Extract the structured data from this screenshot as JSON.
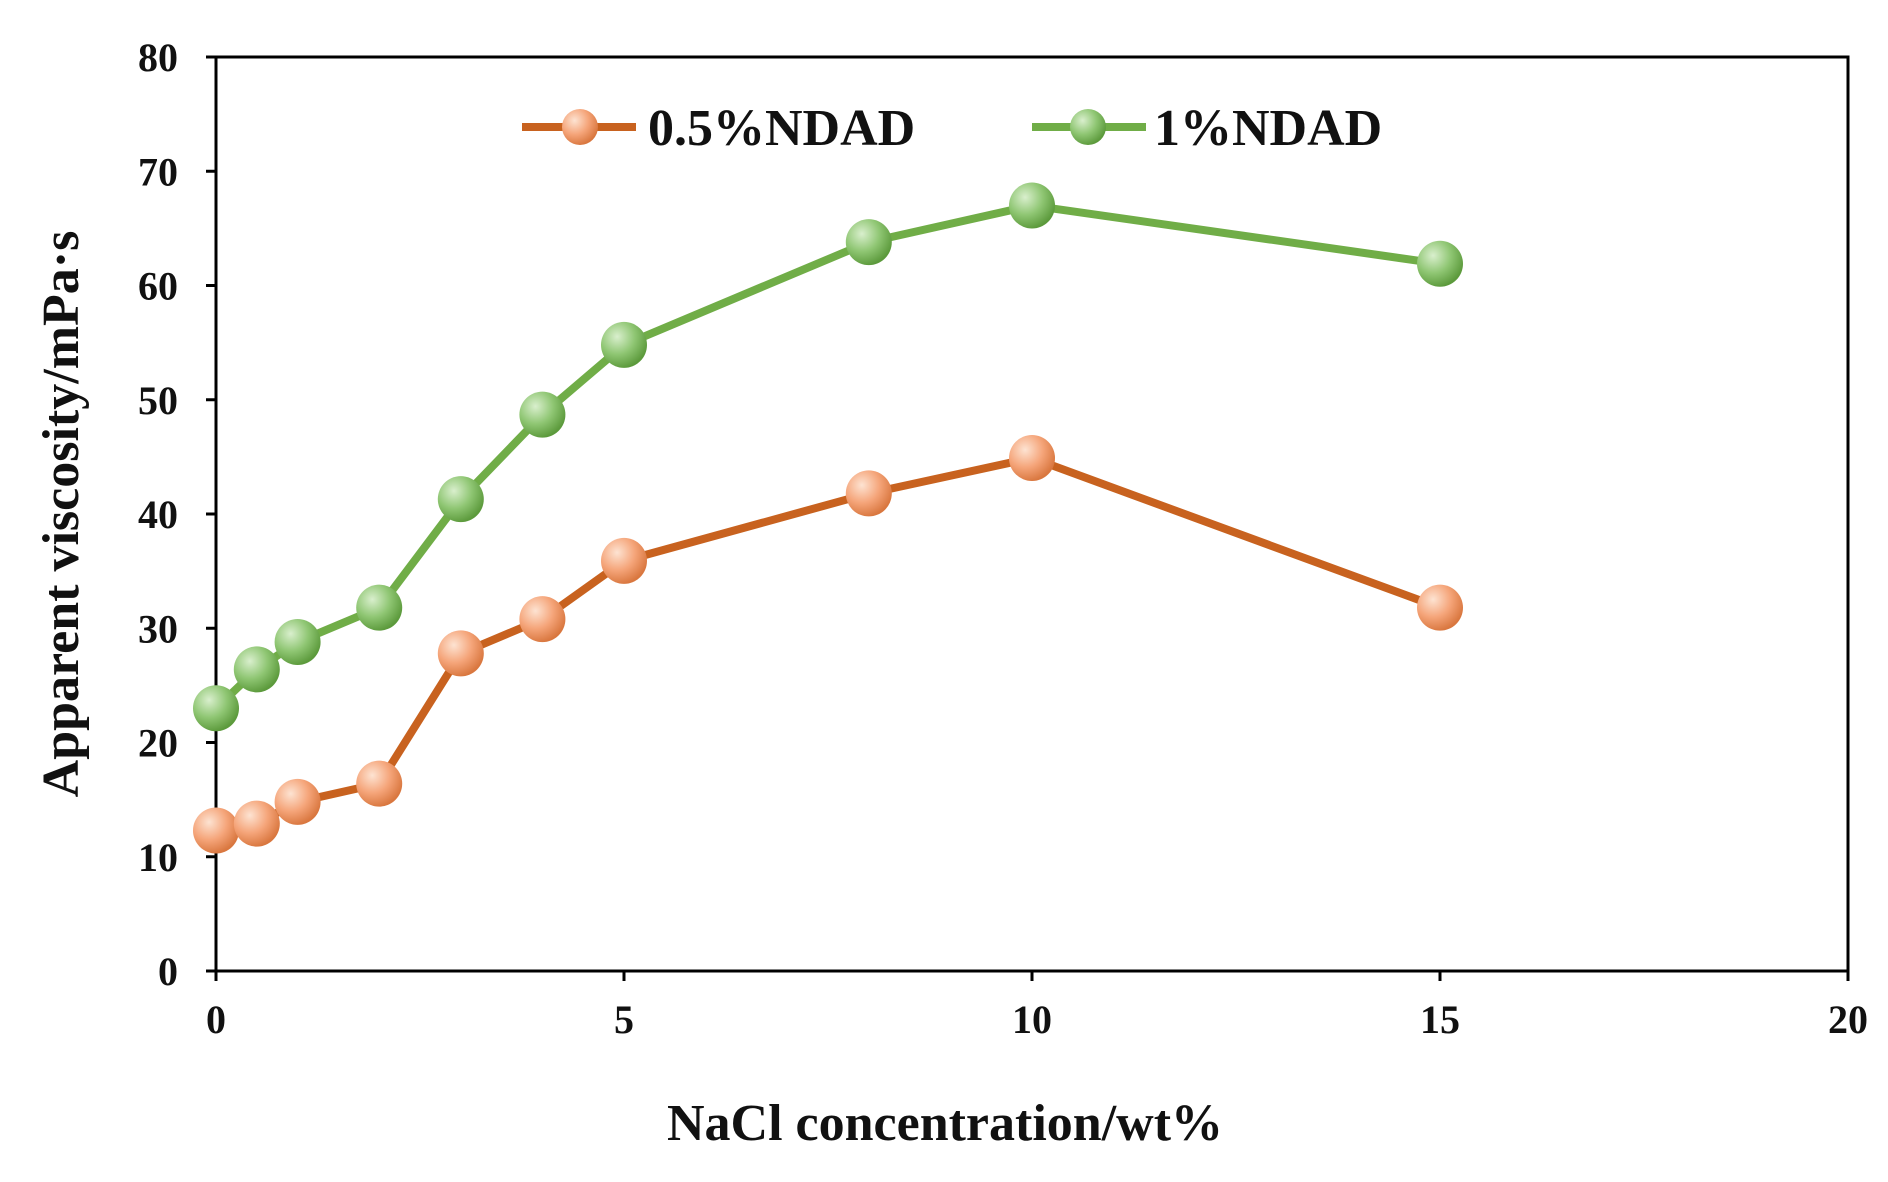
{
  "chart_data": {
    "type": "line",
    "title": "",
    "xlabel": "NaCl concentration/wt%",
    "ylabel": "Apparent viscosity/mPa·s",
    "xlim": [
      0,
      20
    ],
    "ylim": [
      0,
      80
    ],
    "xticks": [
      0,
      5,
      10,
      15,
      20
    ],
    "yticks": [
      0,
      10,
      20,
      30,
      40,
      50,
      60,
      70,
      80
    ],
    "grid": false,
    "legend_position": "top-center",
    "series": [
      {
        "name": "0.5%NDAD",
        "color": "#c8621f",
        "marker_color": "#f5a57a",
        "x": [
          0,
          0.5,
          1,
          2,
          3,
          4,
          5,
          8,
          10,
          15
        ],
        "y": [
          12.3,
          12.9,
          14.8,
          16.4,
          27.8,
          30.8,
          35.9,
          41.8,
          44.9,
          31.8
        ]
      },
      {
        "name": "1%NDAD",
        "color": "#70ad47",
        "marker_color": "#8fc673",
        "x": [
          0,
          0.5,
          1,
          2,
          3,
          4,
          5,
          8,
          10,
          15
        ],
        "y": [
          23.0,
          26.4,
          28.8,
          31.8,
          41.3,
          48.7,
          54.8,
          63.8,
          67.0,
          61.9
        ]
      }
    ]
  }
}
